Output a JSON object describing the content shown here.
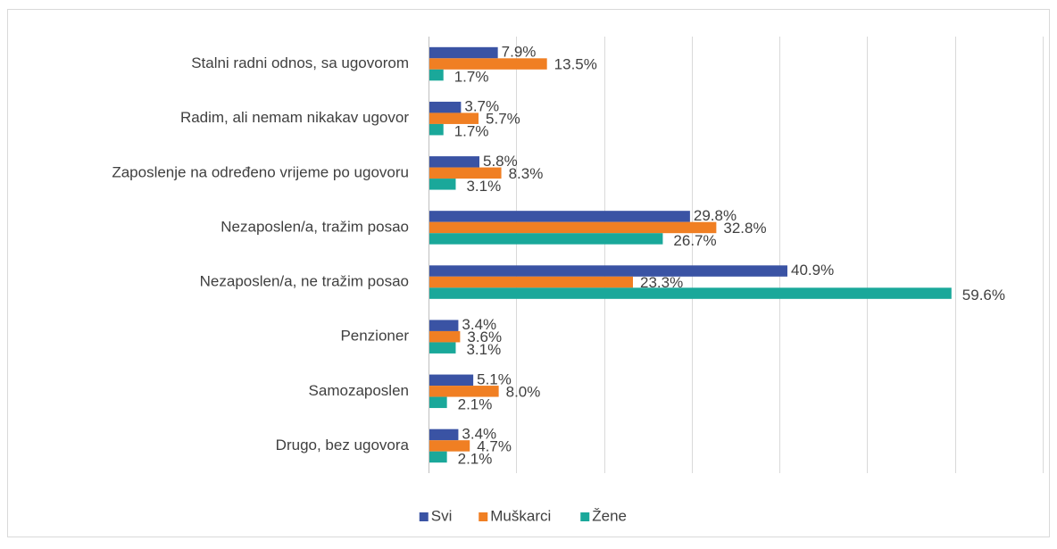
{
  "chart_data": {
    "type": "hbar",
    "categories": [
      "Stalni radni odnos, sa ugovorom",
      "Radim, ali nemam nikakav ugovor",
      "Zaposlenje na određeno vrijeme po ugovoru",
      "Nezaposlen/a, tražim posao",
      "Nezaposlen/a, ne tražim posao",
      "Penzioner",
      "Samozaposlen",
      "Drugo, bez ugovora"
    ],
    "series": [
      {
        "name": "Svi",
        "color": "#3a53a4",
        "values": [
          7.9,
          3.7,
          5.8,
          29.8,
          40.9,
          3.4,
          5.1,
          3.4
        ],
        "value_labels": [
          "7.9%",
          "3.7%",
          "5.8%",
          "29.8%",
          "40.9%",
          "3.4%",
          "5.1%",
          "3.4%"
        ]
      },
      {
        "name": "Muškarci",
        "color": "#f07f23",
        "values": [
          13.5,
          5.7,
          8.3,
          32.8,
          23.3,
          3.6,
          8.0,
          4.7
        ],
        "value_labels": [
          "13.5%",
          "5.7%",
          "8.3%",
          "32.8%",
          "23.3%",
          "3.6%",
          "8.0%",
          "4.7%"
        ]
      },
      {
        "name": "Žene",
        "color": "#1aa89a",
        "values": [
          1.7,
          1.7,
          3.1,
          26.7,
          59.6,
          3.1,
          2.1,
          2.1
        ],
        "value_labels": [
          "1.7%",
          "1.7%",
          "3.1%",
          "26.7%",
          "59.6%",
          "3.1%",
          "2.1%",
          "2.1%"
        ]
      }
    ],
    "xlim": [
      0,
      70
    ],
    "xticks": [
      0,
      10,
      20,
      30,
      40,
      50,
      60,
      70
    ],
    "grid": true,
    "show_tick_labels": false,
    "legend": "bottom"
  }
}
